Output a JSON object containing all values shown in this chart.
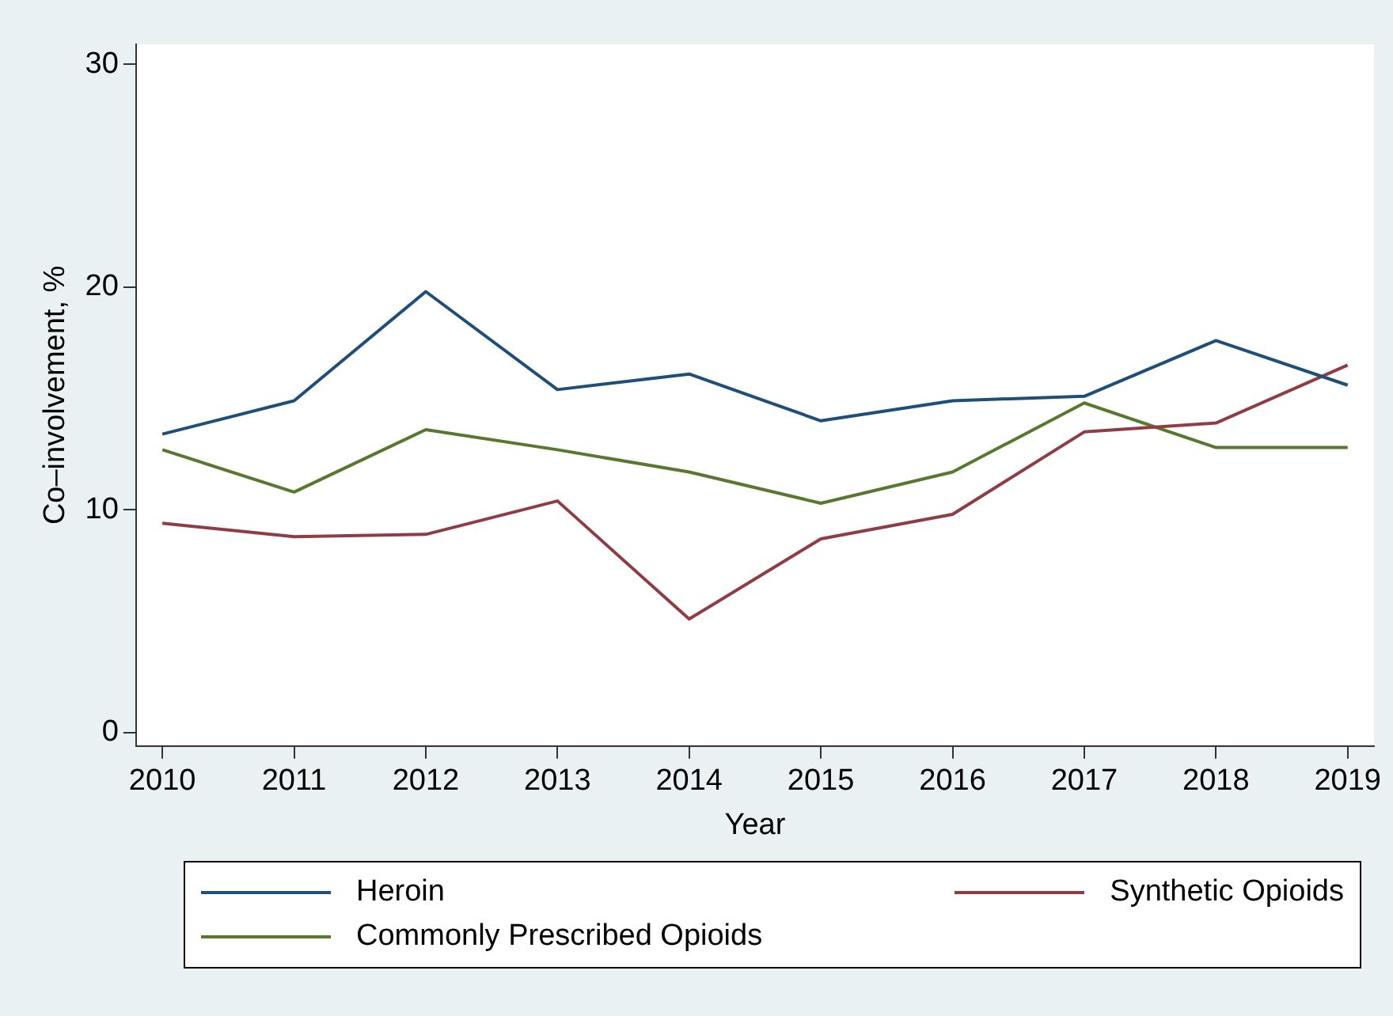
{
  "chart_data": {
    "type": "line",
    "xlabel": "Year",
    "ylabel": "Co–involvement, %",
    "x": [
      2010,
      2011,
      2012,
      2013,
      2014,
      2015,
      2016,
      2017,
      2018,
      2019
    ],
    "xlim": [
      2009.8,
      2019.2
    ],
    "xticks": [
      2010,
      2011,
      2012,
      2013,
      2014,
      2015,
      2016,
      2017,
      2018,
      2019
    ],
    "ylim": [
      -0.6,
      30.9
    ],
    "yticks": [
      0,
      10,
      20,
      30
    ],
    "grid": false,
    "legend": "bottom",
    "marker": "none",
    "line_style": "solid",
    "series": [
      {
        "name": "Heroin",
        "color": "#1f4e79",
        "values": [
          13.4,
          14.9,
          19.8,
          15.4,
          16.1,
          14.0,
          14.9,
          15.1,
          17.6,
          15.6
        ]
      },
      {
        "name": "Synthetic Opioids",
        "color": "#903c44",
        "values": [
          9.4,
          8.8,
          8.9,
          10.4,
          5.1,
          8.7,
          9.8,
          13.5,
          13.9,
          16.5
        ]
      },
      {
        "name": "Commonly Prescribed Opioids",
        "color": "#57782e",
        "values": [
          12.7,
          10.8,
          13.6,
          12.7,
          11.7,
          10.3,
          11.7,
          14.8,
          12.8,
          12.8
        ]
      }
    ]
  }
}
